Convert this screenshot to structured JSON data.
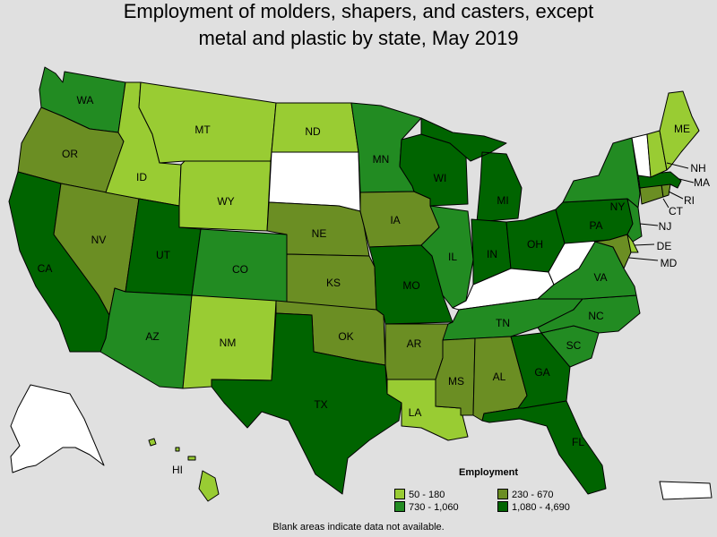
{
  "title": {
    "line1": "Employment of molders, shapers, and casters, except",
    "line2": "metal and plastic by state, May 2019"
  },
  "legend": {
    "title": "Employment",
    "bins": [
      {
        "label": "50 - 180",
        "color": "#99cc33"
      },
      {
        "label": "230 - 670",
        "color": "#6b8e23"
      },
      {
        "label": "730 - 1,060",
        "color": "#228b22"
      },
      {
        "label": "1,080 - 4,690",
        "color": "#006400"
      }
    ]
  },
  "no_data_color": "#ffffff",
  "footnote": "Blank areas indicate data not available.",
  "states": [
    {
      "abbr": "WA",
      "bin": 2
    },
    {
      "abbr": "OR",
      "bin": 1
    },
    {
      "abbr": "CA",
      "bin": 3
    },
    {
      "abbr": "NV",
      "bin": 1
    },
    {
      "abbr": "ID",
      "bin": 0
    },
    {
      "abbr": "MT",
      "bin": 0
    },
    {
      "abbr": "WY",
      "bin": 0
    },
    {
      "abbr": "UT",
      "bin": 3
    },
    {
      "abbr": "AZ",
      "bin": 2
    },
    {
      "abbr": "CO",
      "bin": 2
    },
    {
      "abbr": "NM",
      "bin": 0
    },
    {
      "abbr": "ND",
      "bin": 0
    },
    {
      "abbr": "SD",
      "bin": null
    },
    {
      "abbr": "NE",
      "bin": 1
    },
    {
      "abbr": "KS",
      "bin": 1
    },
    {
      "abbr": "OK",
      "bin": 1
    },
    {
      "abbr": "TX",
      "bin": 3
    },
    {
      "abbr": "MN",
      "bin": 2
    },
    {
      "abbr": "IA",
      "bin": 1
    },
    {
      "abbr": "MO",
      "bin": 3
    },
    {
      "abbr": "AR",
      "bin": 1
    },
    {
      "abbr": "LA",
      "bin": 0
    },
    {
      "abbr": "WI",
      "bin": 3
    },
    {
      "abbr": "IL",
      "bin": 2
    },
    {
      "abbr": "MI",
      "bin": 3
    },
    {
      "abbr": "IN",
      "bin": 3
    },
    {
      "abbr": "OH",
      "bin": 3
    },
    {
      "abbr": "KY",
      "bin": null
    },
    {
      "abbr": "TN",
      "bin": 2
    },
    {
      "abbr": "MS",
      "bin": 1
    },
    {
      "abbr": "AL",
      "bin": 1
    },
    {
      "abbr": "GA",
      "bin": 3
    },
    {
      "abbr": "FL",
      "bin": 3
    },
    {
      "abbr": "SC",
      "bin": 2
    },
    {
      "abbr": "NC",
      "bin": 2
    },
    {
      "abbr": "VA",
      "bin": 2
    },
    {
      "abbr": "WV",
      "bin": null
    },
    {
      "abbr": "PA",
      "bin": 3
    },
    {
      "abbr": "NY",
      "bin": 2
    },
    {
      "abbr": "VT",
      "bin": null
    },
    {
      "abbr": "NH",
      "bin": 0
    },
    {
      "abbr": "ME",
      "bin": 0
    },
    {
      "abbr": "MA",
      "bin": 3
    },
    {
      "abbr": "RI",
      "bin": 1
    },
    {
      "abbr": "CT",
      "bin": 1
    },
    {
      "abbr": "NJ",
      "bin": 2
    },
    {
      "abbr": "DE",
      "bin": 0
    },
    {
      "abbr": "MD",
      "bin": 1
    },
    {
      "abbr": "AK",
      "bin": null
    },
    {
      "abbr": "HI",
      "bin": 0
    },
    {
      "abbr": "PR",
      "bin": null
    }
  ],
  "labels": {
    "WA": "WA",
    "OR": "OR",
    "CA": "CA",
    "NV": "NV",
    "ID": "ID",
    "MT": "MT",
    "WY": "WY",
    "UT": "UT",
    "AZ": "AZ",
    "CO": "CO",
    "NM": "NM",
    "ND": "ND",
    "NE": "NE",
    "KS": "KS",
    "OK": "OK",
    "TX": "TX",
    "MN": "MN",
    "IA": "IA",
    "MO": "MO",
    "AR": "AR",
    "LA": "LA",
    "WI": "WI",
    "IL": "IL",
    "MI": "MI",
    "IN": "IN",
    "OH": "OH",
    "TN": "TN",
    "MS": "MS",
    "AL": "AL",
    "GA": "GA",
    "FL": "FL",
    "SC": "SC",
    "NC": "NC",
    "VA": "VA",
    "PA": "PA",
    "NY": "NY",
    "ME": "ME",
    "NH": "NH",
    "MA": "MA",
    "RI": "RI",
    "CT": "CT",
    "NJ": "NJ",
    "DE": "DE",
    "MD": "MD",
    "HI": "HI"
  }
}
